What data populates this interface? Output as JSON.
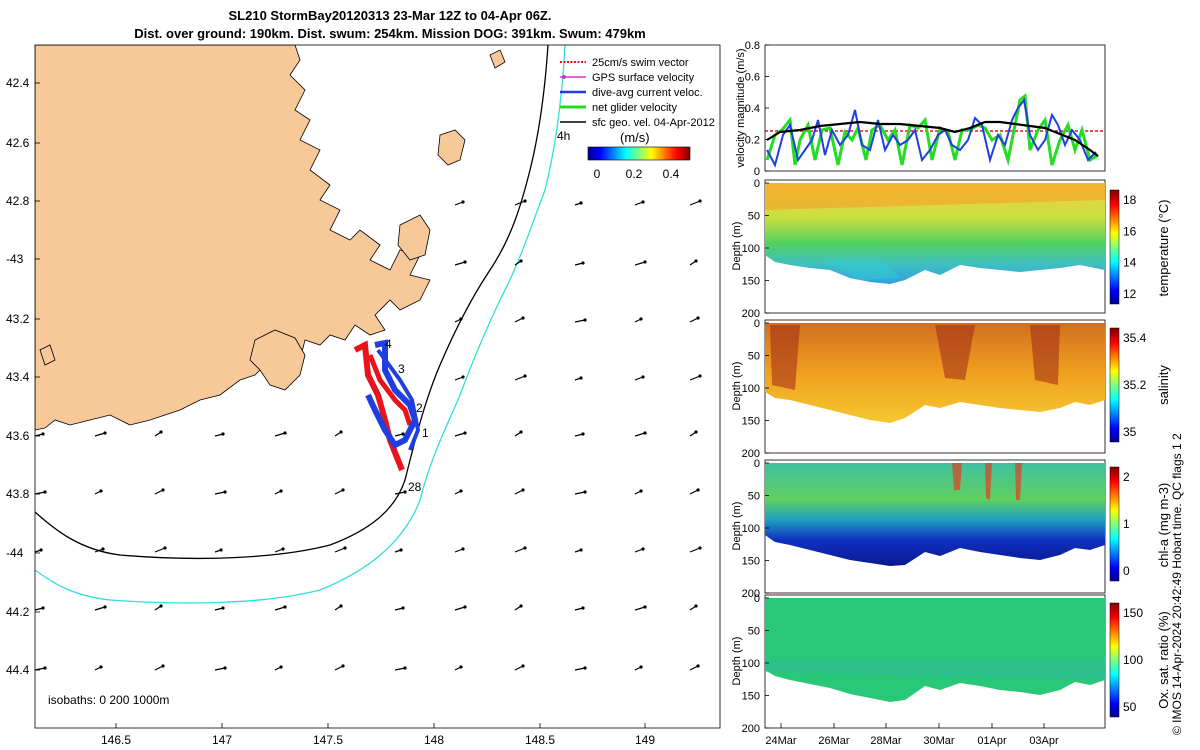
{
  "header": {
    "title_line1": "SL210 StormBay20120313 23-Mar 12Z to 04-Apr 06Z.",
    "title_line2": "Dist. over ground: 190km. Dist. swum: 254km. Mission DOG: 391km. Swum: 479km"
  },
  "map": {
    "lat_ticks": [
      "42.4",
      "42.6",
      "42.8",
      "-43",
      "43.2",
      "43.4",
      "43.6",
      "43.8",
      "-44",
      "44.2",
      "44.4"
    ],
    "lon_ticks": [
      "146.5",
      "147",
      "147.5",
      "148",
      "148.5",
      "149"
    ],
    "legend": [
      {
        "label": "25cm/s swim vector",
        "color": "#e8141c"
      },
      {
        "label": "GPS surface velocity",
        "color": "#cc33cc"
      },
      {
        "label": "dive-avg current veloc.",
        "color": "#1f3fe0"
      },
      {
        "label": "net glider velocity",
        "color": "#22dd22"
      },
      {
        "label": "sfc geo. vel. 04-Apr-2012",
        "color": "#000000"
      }
    ],
    "colorbar_unit": "(m/s)",
    "colorbar_ticks": [
      "0",
      "0.2",
      "0.4"
    ],
    "track_labels": [
      "4",
      "3",
      "2",
      "1",
      "28"
    ],
    "time_label": "4h",
    "isobaths_text": "isobaths: 0   200  1000m",
    "colors": {
      "land": "#f7c898",
      "isobath_200": "#000000",
      "isobath_1000": "#33dddd",
      "track_red": "#e8141c",
      "track_blue": "#1f3fe0"
    }
  },
  "panels": {
    "velocity": {
      "ylabel": "velocity magnitude (m/s)",
      "y_ticks": [
        "0",
        "0.2",
        "0.4",
        "0.6",
        "0.8"
      ],
      "ylim": [
        0,
        0.8
      ]
    },
    "temperature": {
      "ylabel": "Depth (m)",
      "y_ticks": [
        "0",
        "50",
        "100",
        "150",
        "200"
      ],
      "cb_label": "temperature (°C)",
      "cb_ticks": [
        "12",
        "14",
        "16",
        "18"
      ]
    },
    "salinity": {
      "ylabel": "Depth (m)",
      "y_ticks": [
        "0",
        "50",
        "100",
        "150",
        "200"
      ],
      "cb_label": "salinity",
      "cb_ticks": [
        "35",
        "35.2",
        "35.4"
      ]
    },
    "chla": {
      "ylabel": "Depth (m)",
      "y_ticks": [
        "0",
        "50",
        "100",
        "150",
        "200"
      ],
      "cb_label": "chl-a (mg m-3)",
      "cb_ticks": [
        "0",
        "1",
        "2"
      ]
    },
    "oxygen": {
      "ylabel": "Depth (m)",
      "y_ticks": [
        "0",
        "50",
        "100",
        "150",
        "200"
      ],
      "cb_label": "Ox. sat. ratio (%)",
      "cb_ticks": [
        "50",
        "100",
        "150"
      ]
    },
    "x_ticks": [
      "24Mar",
      "26Mar",
      "28Mar",
      "30Mar",
      "01Apr",
      "03Apr"
    ]
  },
  "footer": {
    "note": "© IMOS 14-Apr-2024 20:42:49 Hobart time. QC flags 1  2"
  }
}
